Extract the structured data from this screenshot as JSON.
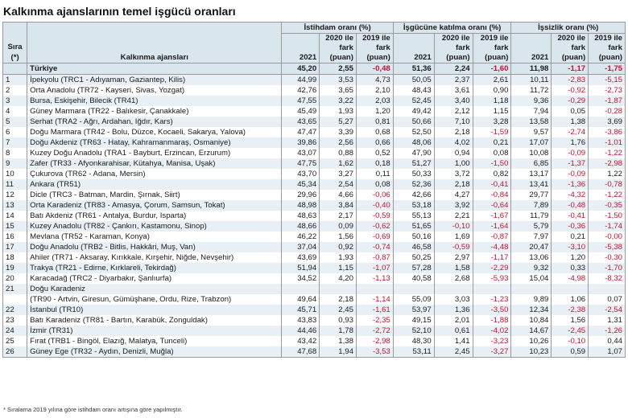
{
  "title": "Kalkınma ajanslarının temel işgücü oranları",
  "header": {
    "sira": "Sıra",
    "sira_note": "(*)",
    "ajans": "Kalkınma ajansları",
    "groups": [
      "İstihdam oranı (%)",
      "İşgücüne katılma oranı (%)",
      "İşsizlik oranı (%)"
    ],
    "col_2021": "2021",
    "col_2020_lines": [
      "2020 ile",
      "fark",
      "(puan)"
    ],
    "col_2019_lines": [
      "2019 ile",
      "fark",
      "(puan)"
    ]
  },
  "total": {
    "label": "Türkiye",
    "values": [
      "45,20",
      "2,55",
      "-0,48",
      "51,36",
      "2,24",
      "-1,60",
      "11,98",
      "-1,17",
      "-1,75"
    ]
  },
  "rows": [
    {
      "sira": "1",
      "name": "İpekyolu (TRC1 - Adıyaman, Gaziantep, Kilis)",
      "values": [
        "44,99",
        "3,53",
        "4,73",
        "50,05",
        "2,37",
        "2,61",
        "10,11",
        "-2,83",
        "-5,15"
      ]
    },
    {
      "sira": "2",
      "name": "Orta Anadolu (TR72 - Kayseri, Sivas, Yozgat)",
      "values": [
        "42,76",
        "3,65",
        "2,10",
        "48,43",
        "3,61",
        "0,90",
        "11,72",
        "-0,92",
        "-2,73"
      ]
    },
    {
      "sira": "3",
      "name": "Bursa, Eskişehir, Bilecik (TR41)",
      "values": [
        "47,55",
        "3,22",
        "2,03",
        "52,45",
        "3,40",
        "1,18",
        "9,36",
        "-0,29",
        "-1,87"
      ]
    },
    {
      "sira": "4",
      "name": "Güney Marmara (TR22 - Balıkesir, Çanakkale)",
      "values": [
        "45,49",
        "1,93",
        "1,20",
        "49,42",
        "2,12",
        "1,15",
        "7,94",
        "0,05",
        "-0,28"
      ]
    },
    {
      "sira": "5",
      "name": "Serhat (TRA2 - Ağrı, Ardahan, Iğdır, Kars)",
      "values": [
        "43,65",
        "5,27",
        "0,81",
        "50,66",
        "7,10",
        "3,28",
        "13,58",
        "1,38",
        "3,69"
      ]
    },
    {
      "sira": "6",
      "name": "Doğu Marmara (TR42 - Bolu, Düzce, Kocaeli, Sakarya, Yalova)",
      "values": [
        "47,47",
        "3,39",
        "0,68",
        "52,50",
        "2,18",
        "-1,59",
        "9,57",
        "-2,74",
        "-3,86"
      ]
    },
    {
      "sira": "7",
      "name": "Doğu Akdeniz (TR63 - Hatay, Kahramanmaraş, Osmaniye)",
      "values": [
        "39,86",
        "2,56",
        "0,66",
        "48,06",
        "4,02",
        "0,21",
        "17,07",
        "1,76",
        "-1,01"
      ]
    },
    {
      "sira": "8",
      "name": "Kuzey Doğu Anadolu (TRA1 - Bayburt, Erzincan, Erzurum)",
      "values": [
        "43,07",
        "0,88",
        "0,52",
        "47,90",
        "0,94",
        "0,08",
        "10,08",
        "-0,09",
        "-1,22"
      ]
    },
    {
      "sira": "9",
      "name": "Zafer (TR33 - Afyonkarahisar, Kütahya, Manisa, Uşak)",
      "values": [
        "47,75",
        "1,62",
        "0,18",
        "51,27",
        "1,00",
        "-1,50",
        "6,85",
        "-1,37",
        "-2,98"
      ]
    },
    {
      "sira": "10",
      "name": "Çukurova (TR62 - Adana, Mersin)",
      "values": [
        "43,70",
        "3,27",
        "0,11",
        "50,33",
        "3,72",
        "0,82",
        "13,17",
        "-0,09",
        "1,22"
      ]
    },
    {
      "sira": "11",
      "name": "Ankara (TR51)",
      "values": [
        "45,34",
        "2,54",
        "0,08",
        "52,36",
        "2,18",
        "-0,41",
        "13,41",
        "-1,36",
        "-0,78"
      ]
    },
    {
      "sira": "12",
      "name": "Dicle (TRC3 - Batman, Mardin, Şırnak, Siirt)",
      "values": [
        "29,96",
        "4,66",
        "-0,06",
        "42,66",
        "4,27",
        "-0,84",
        "29,77",
        "-4,32",
        "-1,22"
      ]
    },
    {
      "sira": "13",
      "name": "Orta Karadeniz (TR83 - Amasya, Çorum, Samsun, Tokat)",
      "values": [
        "48,98",
        "3,84",
        "-0,40",
        "53,18",
        "3,92",
        "-0,64",
        "7,89",
        "-0,48",
        "-0,35"
      ]
    },
    {
      "sira": "14",
      "name": "Batı Akdeniz (TR61 - Antalya, Burdur, Isparta)",
      "values": [
        "48,63",
        "2,17",
        "-0,59",
        "55,13",
        "2,21",
        "-1,67",
        "11,79",
        "-0,41",
        "-1,50"
      ]
    },
    {
      "sira": "15",
      "name": "Kuzey Anadolu (TR82 - Çankırı, Kastamonu, Sinop)",
      "values": [
        "48,66",
        "0,09",
        "-0,62",
        "51,65",
        "-0,10",
        "-1,64",
        "5,79",
        "-0,36",
        "-1,74"
      ]
    },
    {
      "sira": "16",
      "name": "Mevlana (TR52 - Karaman, Konya)",
      "values": [
        "46,22",
        "1,56",
        "-0,69",
        "50,16",
        "1,69",
        "-0,87",
        "7,97",
        "0,21",
        "-0,00"
      ]
    },
    {
      "sira": "17",
      "name": "Doğu Anadolu (TRB2 - Bitlis, Hakkâri, Muş, Van)",
      "values": [
        "37,04",
        "0,92",
        "-0,74",
        "46,58",
        "-0,59",
        "-4,48",
        "20,47",
        "-3,10",
        "-5,38"
      ]
    },
    {
      "sira": "18",
      "name": "Ahiler (TR71 - Aksaray, Kırıkkale, Kırşehir, Niğde, Nevşehir)",
      "values": [
        "43,69",
        "1,93",
        "-0,87",
        "50,25",
        "2,97",
        "-1,17",
        "13,06",
        "1,20",
        "-0,30"
      ]
    },
    {
      "sira": "19",
      "name": "Trakya (TR21 - Edirne, Kırklareli, Tekirdağ)",
      "values": [
        "51,94",
        "1,15",
        "-1,07",
        "57,28",
        "1,58",
        "-2,29",
        "9,32",
        "0,33",
        "-1,70"
      ]
    },
    {
      "sira": "20",
      "name": "Karacadağ (TRC2 - Diyarbakır, Şanlıurfa)",
      "values": [
        "34,52",
        "4,20",
        "-1,13",
        "40,58",
        "2,68",
        "-5,93",
        "15,04",
        "-4,98",
        "-8,32"
      ]
    },
    {
      "sira": "21",
      "name": "Doğu Karadeniz",
      "values": [
        "",
        "",
        "",
        "",
        "",
        "",
        "",
        "",
        ""
      ]
    },
    {
      "sira": "",
      "name": "(TR90 - Artvin, Giresun, Gümüşhane, Ordu, Rize, Trabzon)",
      "values": [
        "49,64",
        "2,18",
        "-1,14",
        "55,09",
        "3,03",
        "-1,23",
        "9,89",
        "1,06",
        "0,07"
      ]
    },
    {
      "sira": "22",
      "name": "İstanbul (TR10)",
      "values": [
        "45,71",
        "2,45",
        "-1,61",
        "53,97",
        "1,36",
        "-3,50",
        "12,34",
        "-2,38",
        "-2,54"
      ]
    },
    {
      "sira": "23",
      "name": "Batı Karadeniz (TR81 - Bartın, Karabük, Zonguldak)",
      "values": [
        "43,83",
        "0,93",
        "-2,35",
        "49,15",
        "2,01",
        "-1,88",
        "10,84",
        "1,56",
        "1,31"
      ]
    },
    {
      "sira": "24",
      "name": "İzmir (TR31)",
      "values": [
        "44,46",
        "1,78",
        "-2,72",
        "52,10",
        "0,61",
        "-4,02",
        "14,67",
        "-2,45",
        "-1,26"
      ]
    },
    {
      "sira": "25",
      "name": "Fırat (TRB1 - Bingöl, Elazığ, Malatya, Tunceli)",
      "values": [
        "43,42",
        "1,38",
        "-2,98",
        "48,30",
        "1,41",
        "-3,23",
        "10,26",
        "-0,10",
        "0,44"
      ]
    },
    {
      "sira": "26",
      "name": "Güney Ege (TR32 - Aydın, Denizli, Muğla)",
      "values": [
        "47,68",
        "1,94",
        "-3,53",
        "53,11",
        "2,45",
        "-3,27",
        "10,23",
        "0,59",
        "1,07"
      ]
    }
  ],
  "footnote": "* Sıralama 2019 yılına göre istihdam oranı artışına göre yapılmıştır.",
  "colors": {
    "header_bg": "#d9e6ee",
    "stripe_bg": "#e8f0f5",
    "negative": "#c8102e"
  }
}
